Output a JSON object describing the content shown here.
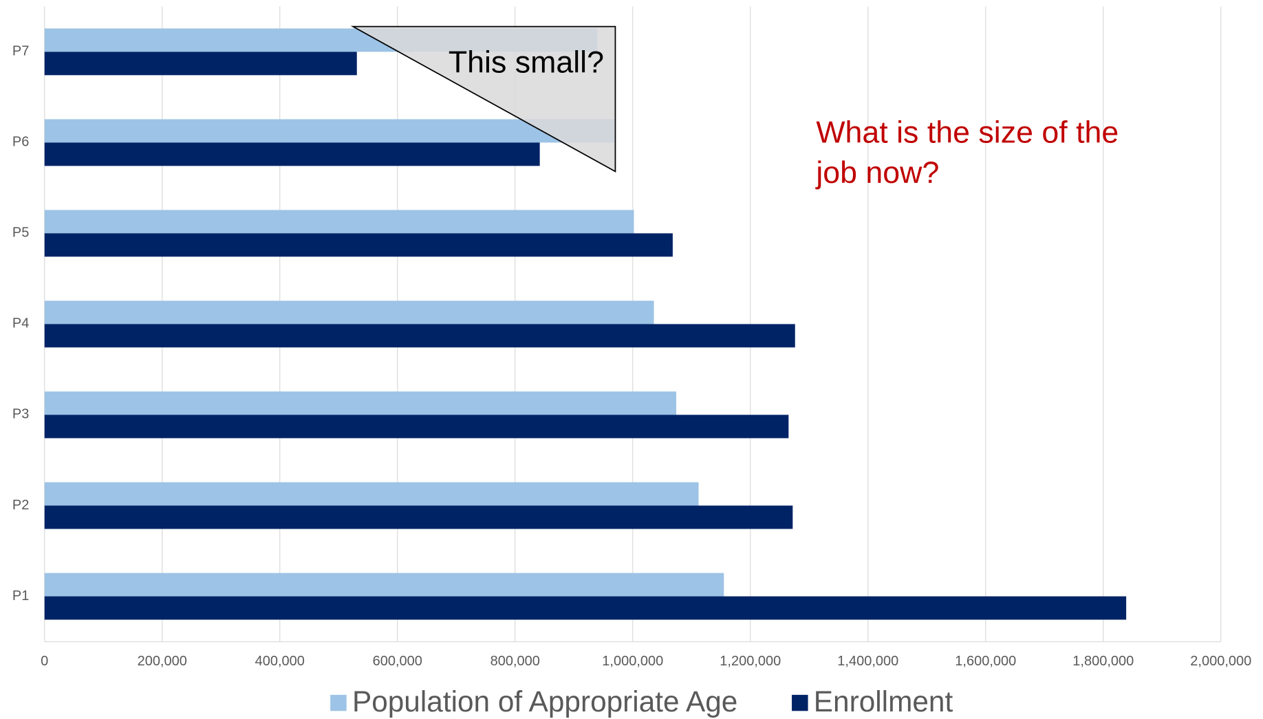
{
  "chart_data": {
    "type": "hbar",
    "categories": [
      "P1",
      "P2",
      "P3",
      "P4",
      "P5",
      "P6",
      "P7"
    ],
    "series": [
      {
        "name": "Population of Appropriate Age",
        "color": "#9dc3e6",
        "values": [
          1155000,
          1112000,
          1074000,
          1036000,
          1002000,
          969000,
          940000
        ]
      },
      {
        "name": "Enrollment",
        "color": "#002366",
        "values": [
          1839000,
          1272000,
          1265000,
          1276000,
          1068000,
          842000,
          531000
        ]
      }
    ],
    "xlim": [
      0,
      2000000
    ],
    "xticks": [
      0,
      {
        "value": 200000,
        "label": "200,000"
      },
      {
        "value": 400000,
        "label": "400,000"
      },
      {
        "value": 600000,
        "label": "600,000"
      },
      {
        "value": 800000,
        "label": "800,000"
      },
      {
        "value": 1000000,
        "label": "1,000,000"
      },
      {
        "value": 1200000,
        "label": "1,200,000"
      },
      {
        "value": 1400000,
        "label": "1,400,000"
      },
      {
        "value": 1600000,
        "label": "1,600,000"
      },
      {
        "value": 1800000,
        "label": "1,800,000"
      },
      {
        "value": 2000000,
        "label": "2,000,000"
      }
    ],
    "grid": true,
    "legend": "bottom",
    "callout": "This small?",
    "annotation": [
      "What is the size of the",
      "job now?"
    ]
  }
}
